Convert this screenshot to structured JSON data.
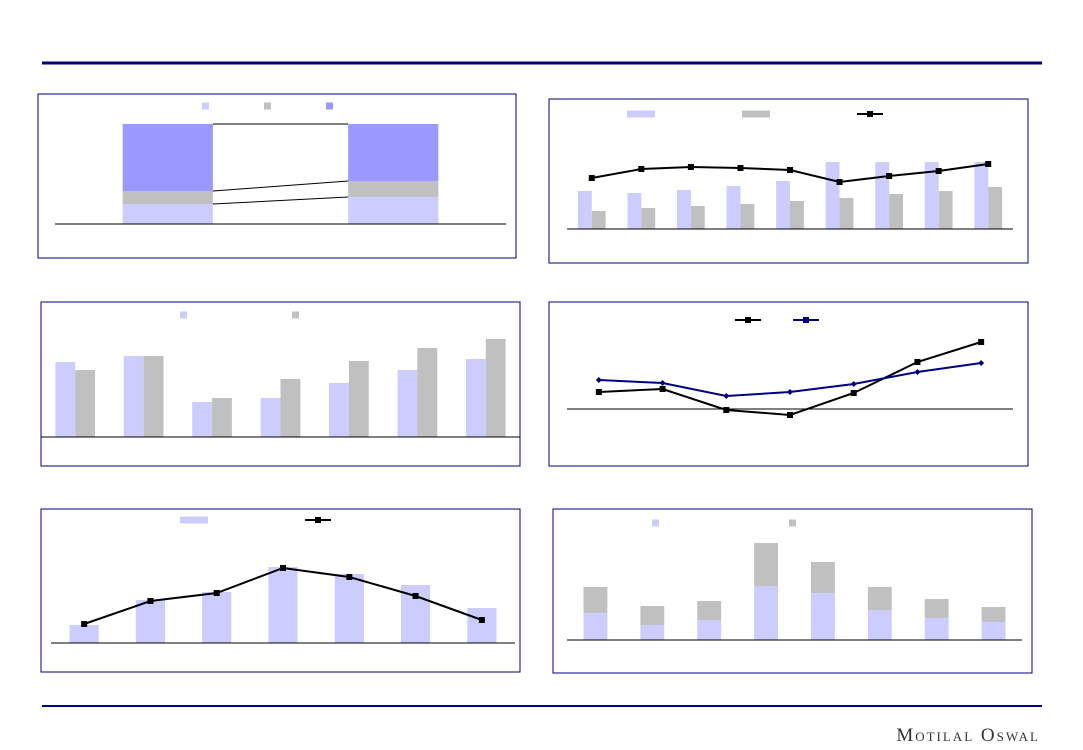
{
  "footer": {
    "brand": "Motilal Oswal"
  },
  "chart_data": [
    {
      "type": "bar",
      "stacked": true,
      "connectors": true,
      "categories": [
        null,
        null
      ],
      "ylim": [
        0,
        100
      ],
      "series": [
        {
          "kind": "bar",
          "color": "#ccccff",
          "values": [
            20,
            27
          ]
        },
        {
          "kind": "bar",
          "color": "#c0c0c0",
          "values": [
            13,
            16
          ]
        },
        {
          "kind": "bar",
          "color": "#9999ff",
          "values": [
            67,
            57
          ]
        }
      ]
    },
    {
      "type": "combo",
      "categories": [
        null,
        null,
        null,
        null,
        null,
        null,
        null,
        null,
        null
      ],
      "ylim": [
        0,
        70
      ],
      "series": [
        {
          "kind": "bar",
          "color": "#ccccff",
          "values": [
            38,
            36,
            39,
            43,
            48,
            67,
            67,
            67,
            67
          ]
        },
        {
          "kind": "bar",
          "color": "#c0c0c0",
          "values": [
            18,
            21,
            23,
            25,
            28,
            31,
            35,
            38,
            42
          ]
        },
        {
          "kind": "line",
          "color": "#000000",
          "marker": "square",
          "values": [
            51,
            60,
            62,
            61,
            59,
            47,
            53,
            58,
            65
          ]
        }
      ]
    },
    {
      "type": "bar",
      "categories": [
        null,
        null,
        null,
        null,
        null,
        null,
        null
      ],
      "ylim": [
        0,
        105
      ],
      "series": [
        {
          "kind": "bar",
          "color": "#ccccff",
          "values": [
            75,
            81,
            35,
            39,
            54,
            67,
            78
          ]
        },
        {
          "kind": "bar",
          "color": "#c0c0c0",
          "values": [
            67,
            81,
            39,
            58,
            76,
            89,
            98
          ]
        }
      ]
    },
    {
      "type": "line",
      "categories": [
        null,
        null,
        null,
        null,
        null,
        null,
        null
      ],
      "ylim": [
        -46,
        79
      ],
      "series": [
        {
          "kind": "line",
          "color": "#000000",
          "marker": "square",
          "values": [
            17,
            20,
            -1,
            -6,
            16,
            47,
            67
          ]
        },
        {
          "kind": "line",
          "color": "#000080",
          "marker": "diamond",
          "values": [
            29,
            26,
            13,
            17,
            25,
            37,
            46
          ]
        }
      ]
    },
    {
      "type": "combo",
      "categories": [
        null,
        null,
        null,
        null,
        null,
        null,
        null
      ],
      "ylim": [
        0,
        90
      ],
      "series": [
        {
          "kind": "bar",
          "color": "#ccccff",
          "values": [
            18,
            43,
            51,
            76,
            69,
            58,
            35
          ]
        },
        {
          "kind": "line",
          "color": "#000000",
          "marker": "square",
          "values": [
            19,
            42,
            50,
            75,
            66,
            47,
            23
          ]
        }
      ]
    },
    {
      "type": "bar",
      "stacked": true,
      "categories": [
        null,
        null,
        null,
        null,
        null,
        null,
        null,
        null
      ],
      "ylim": [
        0,
        110
      ],
      "series": [
        {
          "kind": "bar",
          "color": "#ccccff",
          "values": [
            27,
            15,
            20,
            54,
            47,
            30,
            22,
            18
          ]
        },
        {
          "kind": "bar",
          "color": "#c0c0c0",
          "values": [
            26,
            19,
            19,
            43,
            31,
            23,
            19,
            15
          ]
        }
      ]
    }
  ]
}
